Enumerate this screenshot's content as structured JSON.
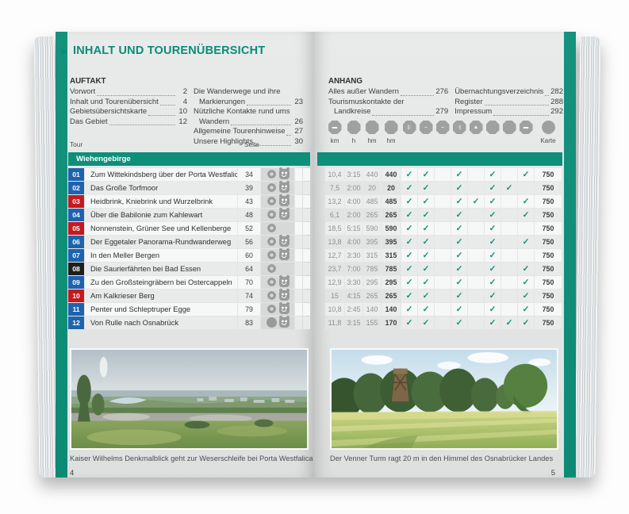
{
  "colors": {
    "teal": "#0e8f7a",
    "badge_blue": "#1e63ae",
    "badge_red": "#c4191f",
    "badge_black": "#1f1f1d",
    "icon_gray": "#9b9d9d",
    "check_teal": "#0e9079"
  },
  "left_page": {
    "header": {
      "title": "INHALT UND TOURENÜBERSICHT"
    },
    "toc": {
      "col1": {
        "heading": "AUFTAKT",
        "items": [
          {
            "line1": "Vorwort",
            "page": "2"
          },
          {
            "line1": "Inhalt und Tourenübersicht",
            "page": "4"
          },
          {
            "line1": "Gebietsübersichtskarte",
            "page": "10"
          },
          {
            "line1": "Das Gebiet",
            "page": "12"
          }
        ]
      },
      "col2": {
        "items": [
          {
            "line1": "Die Wanderwege und ihre",
            "line2": "Markierungen",
            "page": "23"
          },
          {
            "line1": "Nützliche Kontakte rund ums",
            "line2": "Wandern",
            "page": "26"
          },
          {
            "line1": "Allgemeine Tourenhinweise",
            "page": "27"
          },
          {
            "line1": "Unsere Highlights",
            "page": "30"
          }
        ]
      }
    },
    "table": {
      "tour_label": "Tour",
      "seite_label": "Seite",
      "section_title": "Wiehengebirge",
      "rows": [
        {
          "num": "01",
          "badge": "blue",
          "name": "Zum Wittekindsberg über der Porta Westfalica",
          "page": "34",
          "icon1": "loop",
          "icon2": "family"
        },
        {
          "num": "02",
          "badge": "blue",
          "name": "Das Große Torfmoor",
          "page": "39",
          "icon1": "loop",
          "icon2": "family"
        },
        {
          "num": "03",
          "badge": "red",
          "name": "Heidbrink, Kniebrink und Wurzelbrink",
          "page": "43",
          "icon1": "loop",
          "icon2": "family"
        },
        {
          "num": "04",
          "badge": "blue",
          "name": "Über die Babilonie zum Kahlewart",
          "page": "48",
          "icon1": "loop",
          "icon2": "family"
        },
        {
          "num": "05",
          "badge": "red",
          "name": "Nonnenstein, Grüner See und Kellenberge",
          "page": "52",
          "icon1": "loop",
          "icon2": "none"
        },
        {
          "num": "06",
          "badge": "blue",
          "name": "Der Eggetaler Panorama-Rundwanderweg",
          "page": "56",
          "icon1": "loop",
          "icon2": "family"
        },
        {
          "num": "07",
          "badge": "blue",
          "name": "In den Meller Bergen",
          "page": "60",
          "icon1": "loop",
          "icon2": "family"
        },
        {
          "num": "08",
          "badge": "black",
          "name": "Die Saurierfährten bei Bad Essen",
          "page": "64",
          "icon1": "loop",
          "icon2": "none"
        },
        {
          "num": "09",
          "badge": "blue",
          "name": "Zu den Großsteingräbern bei Ostercappeln",
          "page": "70",
          "icon1": "loop",
          "icon2": "family"
        },
        {
          "num": "10",
          "badge": "red",
          "name": "Am Kalkrieser Berg",
          "page": "74",
          "icon1": "loop",
          "icon2": "family"
        },
        {
          "num": "11",
          "badge": "blue",
          "name": "Penter und Schleptruper Egge",
          "page": "79",
          "icon1": "loop",
          "icon2": "family"
        },
        {
          "num": "12",
          "badge": "blue",
          "name": "Von Rulle nach Osnabrück",
          "page": "83",
          "icon1": "solid",
          "icon2": "family"
        }
      ]
    },
    "photo_caption": "Kaiser Wilhelms Denkmalblick geht zur Weserschleife bei Porta Westfalica",
    "page_number": "4"
  },
  "right_page": {
    "toc": {
      "col1": {
        "heading": "ANHANG",
        "items": [
          {
            "line1": "Alles außer Wandern",
            "page": "276"
          },
          {
            "line1": "Tourismuskontakte der",
            "line2": "Landkreise",
            "page": "279"
          }
        ]
      },
      "col2": {
        "items": [
          {
            "line1": "Übernachtungsverzeichnis",
            "page": "282"
          },
          {
            "line1": "Register",
            "page": "288"
          },
          {
            "line1": "Impressum",
            "page": "292"
          }
        ]
      }
    },
    "columns": [
      {
        "name": "distance-icon",
        "label": "km",
        "glyph": "▬"
      },
      {
        "name": "duration-icon",
        "label": "h",
        "glyph": ""
      },
      {
        "name": "ascent-icon",
        "label": "hm",
        "glyph": ""
      },
      {
        "name": "descent-icon",
        "label": "hm",
        "glyph": ""
      },
      {
        "name": "feature-icon-1",
        "label": "",
        "glyph": "|:"
      },
      {
        "name": "feature-icon-2",
        "label": "",
        "glyph": "–"
      },
      {
        "name": "feature-icon-3",
        "label": "",
        "glyph": "–"
      },
      {
        "name": "feature-icon-4",
        "label": "",
        "glyph": "·|"
      },
      {
        "name": "feature-icon-5",
        "label": "",
        "glyph": "▲"
      },
      {
        "name": "feature-icon-6",
        "label": "",
        "glyph": ""
      },
      {
        "name": "feature-icon-7",
        "label": "",
        "glyph": ""
      },
      {
        "name": "feature-icon-8",
        "label": "",
        "glyph": "▬"
      },
      {
        "name": "map-icon",
        "label": "Karte",
        "glyph": ""
      }
    ],
    "stats_rows": [
      {
        "km": "10,4",
        "h": "3:15",
        "up": "440",
        "down": "440",
        "checks": [
          "✓",
          "✓",
          "",
          "✓",
          "",
          "✓",
          "",
          "✓"
        ],
        "karte": "750"
      },
      {
        "km": "7,5",
        "h": "2:00",
        "up": "20",
        "down": "20",
        "checks": [
          "✓",
          "✓",
          "",
          "✓",
          "",
          "✓",
          "✓",
          ""
        ],
        "karte": "750"
      },
      {
        "km": "13,2",
        "h": "4:00",
        "up": "485",
        "down": "485",
        "checks": [
          "✓",
          "✓",
          "",
          "✓",
          "✓",
          "✓",
          "",
          "✓"
        ],
        "karte": "750"
      },
      {
        "km": "6,1",
        "h": "2:00",
        "up": "265",
        "down": "265",
        "checks": [
          "✓",
          "✓",
          "",
          "✓",
          "",
          "✓",
          "",
          "✓"
        ],
        "karte": "750"
      },
      {
        "km": "18,5",
        "h": "5:15",
        "up": "590",
        "down": "590",
        "checks": [
          "✓",
          "✓",
          "",
          "✓",
          "",
          "✓",
          "",
          ""
        ],
        "karte": "750"
      },
      {
        "km": "13,8",
        "h": "4:00",
        "up": "395",
        "down": "395",
        "checks": [
          "✓",
          "✓",
          "",
          "✓",
          "",
          "✓",
          "",
          "✓"
        ],
        "karte": "750"
      },
      {
        "km": "12,7",
        "h": "3:30",
        "up": "315",
        "down": "315",
        "checks": [
          "✓",
          "✓",
          "",
          "✓",
          "",
          "✓",
          "",
          ""
        ],
        "karte": "750"
      },
      {
        "km": "23,7",
        "h": "7:00",
        "up": "785",
        "down": "785",
        "checks": [
          "✓",
          "✓",
          "",
          "✓",
          "",
          "✓",
          "",
          "✓"
        ],
        "karte": "750"
      },
      {
        "km": "12,9",
        "h": "3:30",
        "up": "295",
        "down": "295",
        "checks": [
          "✓",
          "✓",
          "",
          "✓",
          "",
          "✓",
          "",
          "✓"
        ],
        "karte": "750"
      },
      {
        "km": "15",
        "h": "4:15",
        "up": "265",
        "down": "265",
        "checks": [
          "✓",
          "✓",
          "",
          "✓",
          "",
          "✓",
          "",
          "✓"
        ],
        "karte": "750"
      },
      {
        "km": "10,8",
        "h": "2:45",
        "up": "140",
        "down": "140",
        "checks": [
          "✓",
          "✓",
          "",
          "✓",
          "",
          "✓",
          "",
          "✓"
        ],
        "karte": "750"
      },
      {
        "km": "11,8",
        "h": "3:15",
        "up": "155",
        "down": "170",
        "checks": [
          "✓",
          "✓",
          "",
          "✓",
          "",
          "✓",
          "✓",
          "✓"
        ],
        "karte": "750"
      }
    ],
    "photo_caption": "Der Venner Turm ragt 20 m in den Himmel des Osnabrücker Landes",
    "page_number": "5"
  }
}
